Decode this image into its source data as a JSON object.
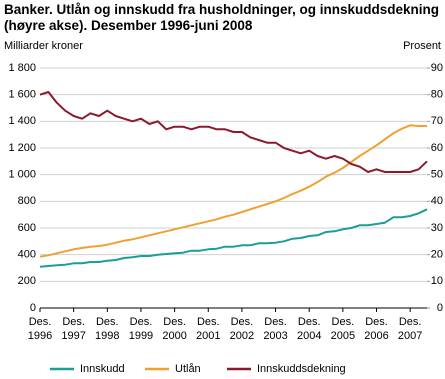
{
  "chart_data": {
    "type": "line",
    "title": "Banker. Utlån og innskudd fra husholdninger, og innskuddsdekning (høyre akse). Desember 1996-juni 2008",
    "ylabel": "Milliarder kroner",
    "y2label": "Prosent",
    "categories": [
      "Des. 1996",
      null,
      null,
      null,
      "Des. 1997",
      null,
      null,
      null,
      "Des. 1998",
      null,
      null,
      null,
      "Des. 1999",
      null,
      null,
      null,
      "Des. 2000",
      null,
      null,
      null,
      "Des. 2001",
      null,
      null,
      null,
      "Des. 2002",
      null,
      null,
      null,
      "Des. 2003",
      null,
      null,
      null,
      "Des. 2004",
      null,
      null,
      null,
      "Des. 2005",
      null,
      null,
      null,
      "Des. 2006",
      null,
      null,
      null,
      "Des. 2007",
      null,
      null
    ],
    "series": [
      {
        "name": "Innskudd",
        "color": "#1a9e96",
        "values": [
          310,
          315,
          320,
          325,
          335,
          335,
          345,
          345,
          355,
          360,
          375,
          380,
          390,
          390,
          400,
          405,
          410,
          415,
          430,
          430,
          440,
          445,
          460,
          460,
          470,
          470,
          485,
          485,
          490,
          500,
          520,
          525,
          540,
          545,
          570,
          575,
          590,
          600,
          620,
          620,
          630,
          640,
          680,
          680,
          690,
          710,
          740
        ]
      },
      {
        "name": "Utlån",
        "color": "#f0a030",
        "values": [
          385,
          395,
          410,
          425,
          440,
          450,
          460,
          465,
          475,
          490,
          505,
          515,
          530,
          545,
          560,
          575,
          590,
          605,
          620,
          635,
          650,
          665,
          685,
          700,
          720,
          740,
          760,
          780,
          800,
          825,
          855,
          880,
          910,
          945,
          985,
          1015,
          1050,
          1095,
          1140,
          1180,
          1220,
          1265,
          1310,
          1345,
          1370,
          1365,
          1365
        ]
      },
      {
        "name": "Innskuddsdekning",
        "color": "#8b1a2a",
        "axis": "y2",
        "values": [
          80,
          81,
          77,
          74,
          72,
          71,
          73,
          72,
          74,
          72,
          71,
          70,
          71,
          69,
          70,
          67,
          68,
          68,
          67,
          68,
          68,
          67,
          67,
          66,
          66,
          64,
          63,
          62,
          62,
          60,
          59,
          58,
          59,
          57,
          56,
          57,
          56,
          54,
          53,
          51,
          52,
          51,
          51,
          51,
          51,
          52,
          55
        ]
      }
    ],
    "ylim": [
      0,
      1800
    ],
    "yticks": [
      0,
      200,
      400,
      600,
      800,
      {
        "value": 1000,
        "label": "1 000"
      },
      {
        "value": 1200,
        "label": "1 200"
      },
      {
        "value": 1400,
        "label": "1 400"
      },
      {
        "value": 1600,
        "label": "1 600"
      },
      {
        "value": 1800,
        "label": "1 800"
      }
    ],
    "y2lim": [
      0,
      90
    ],
    "y2ticks": [
      0,
      10,
      20,
      30,
      40,
      50,
      60,
      70,
      80,
      90
    ],
    "grid": true
  }
}
